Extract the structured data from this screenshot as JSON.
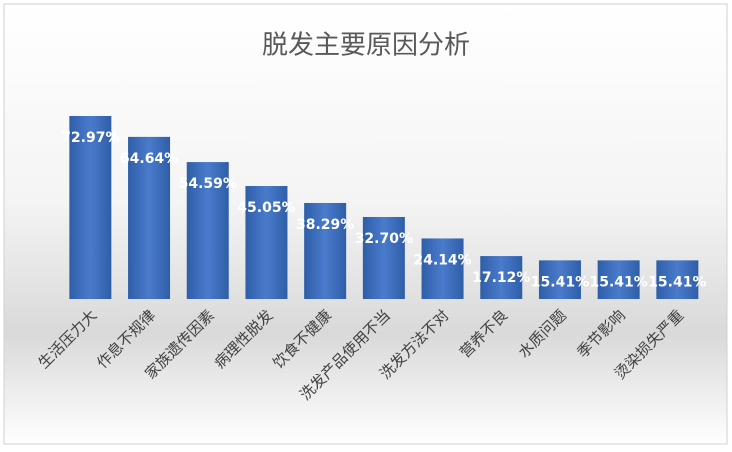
{
  "chart_data": {
    "type": "bar",
    "title": "脱发主要原因分析",
    "categories": [
      "生活压力大",
      "作息不规律",
      "家族遗传因素",
      "病理性脱发",
      "饮食不健康",
      "洗发产品使用不当",
      "洗发方法不对",
      "营养不良",
      "水质问题",
      "季节影响",
      "烫染损失严重"
    ],
    "values": [
      72.97,
      64.64,
      54.59,
      45.05,
      38.29,
      32.7,
      24.14,
      17.12,
      15.41,
      15.41,
      15.41
    ],
    "value_labels": [
      "72.97%",
      "64.64%",
      "54.59%",
      "45.05%",
      "38.29%",
      "32.70%",
      "24.14%",
      "17.12%",
      "15.41%",
      "15.41%",
      "15.41%"
    ],
    "color": "#3f6fbf"
  }
}
